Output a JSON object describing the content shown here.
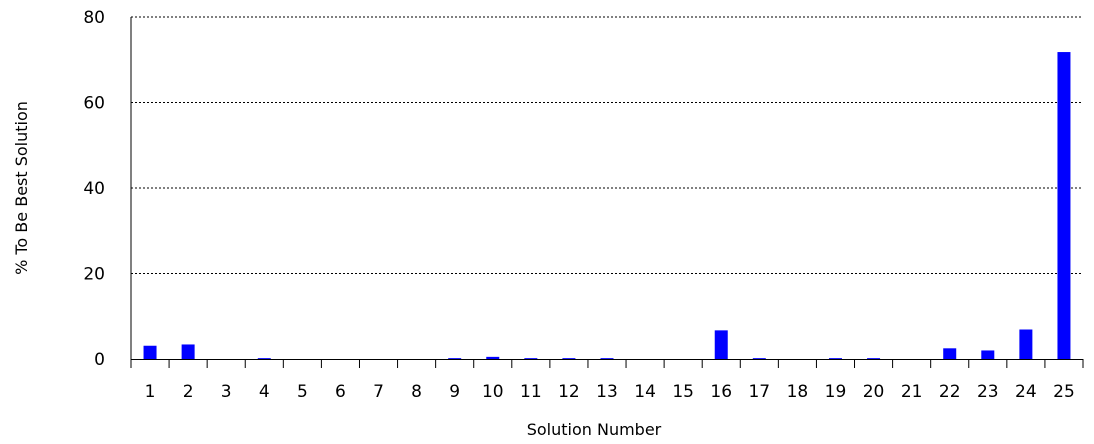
{
  "chart_data": {
    "type": "bar",
    "title": "",
    "xlabel": "Solution Number",
    "ylabel": "% To Be Best Solution",
    "ylim": [
      0,
      80
    ],
    "yticks": [
      0,
      20,
      40,
      60,
      80
    ],
    "grid": "horizontal dotted",
    "bar_color": "#0000FF",
    "categories": [
      "1",
      "2",
      "3",
      "4",
      "5",
      "6",
      "7",
      "8",
      "9",
      "10",
      "11",
      "12",
      "13",
      "14",
      "15",
      "16",
      "17",
      "18",
      "19",
      "20",
      "21",
      "22",
      "23",
      "24",
      "25"
    ],
    "values": [
      3.1,
      3.4,
      0,
      0.2,
      0,
      0,
      0,
      0,
      0.2,
      0.5,
      0.2,
      0.2,
      0.2,
      0,
      0,
      6.7,
      0.2,
      0,
      0.2,
      0.2,
      0,
      2.5,
      2.0,
      6.9,
      71.8
    ]
  }
}
